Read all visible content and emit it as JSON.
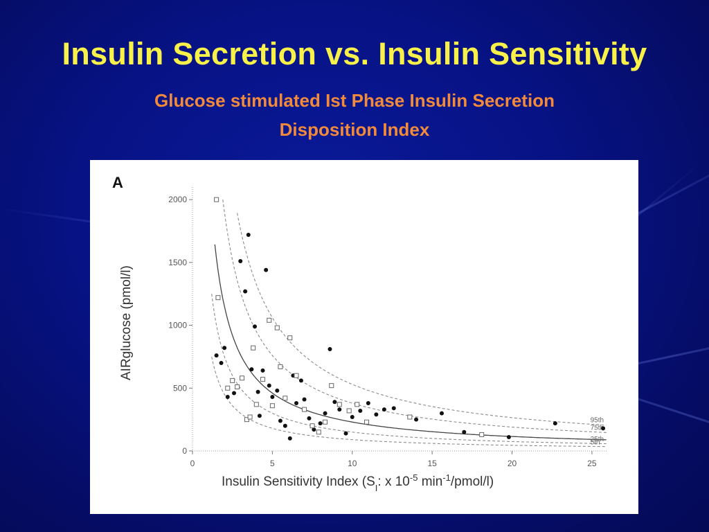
{
  "slide": {
    "title": "Insulin Secretion vs. Insulin Sensitivity",
    "subtitle_line1": "Glucose stimulated  Ist Phase Insulin Secretion",
    "subtitle_line2": "Disposition Index"
  },
  "colors": {
    "background": "#061080",
    "title": "#f8f14a",
    "subtitle": "#f28a3c",
    "panel": "#ffffff",
    "ink": "#333333"
  },
  "chart_data": {
    "type": "scatter",
    "panel_label": "A",
    "xlabel": "Insulin Sensitivity Index (S",
    "xlabel_sub": "I",
    "xlabel_tail": ": x 10",
    "xlabel_sup": "-5",
    "xlabel_end": " min",
    "xlabel_sup2": "-1",
    "xlabel_end2": "/pmol/l)",
    "ylabel": "AIRglucose (pmol/l)",
    "xlim": [
      0,
      26
    ],
    "ylim": [
      0,
      2100
    ],
    "x_ticks": [
      0,
      5,
      10,
      15,
      20,
      25
    ],
    "y_ticks": [
      0,
      500,
      1000,
      1500,
      2000
    ],
    "grid": false,
    "curves": [
      {
        "label": "",
        "k": 2300,
        "style": "solid",
        "xmin": 1.4
      },
      {
        "label": "95th",
        "k": 5300,
        "style": "dashed",
        "xmin": 2.8
      },
      {
        "label": "75th",
        "k": 3800,
        "style": "dashed",
        "xmin": 1.9
      },
      {
        "label": "25th",
        "k": 1500,
        "style": "dashed",
        "xmin": 1.2
      },
      {
        "label": "5th",
        "k": 900,
        "style": "dashed",
        "xmin": 1.2
      }
    ],
    "series": [
      {
        "marker": "filled-circle",
        "points": [
          [
            1.5,
            760
          ],
          [
            1.8,
            700
          ],
          [
            2.0,
            820
          ],
          [
            2.2,
            430
          ],
          [
            2.6,
            460
          ],
          [
            3.0,
            1510
          ],
          [
            3.3,
            1270
          ],
          [
            3.5,
            1720
          ],
          [
            3.7,
            650
          ],
          [
            3.9,
            990
          ],
          [
            4.1,
            470
          ],
          [
            4.2,
            280
          ],
          [
            4.4,
            640
          ],
          [
            4.6,
            1440
          ],
          [
            4.8,
            520
          ],
          [
            5.0,
            430
          ],
          [
            5.3,
            480
          ],
          [
            5.5,
            240
          ],
          [
            5.8,
            200
          ],
          [
            6.1,
            100
          ],
          [
            6.3,
            600
          ],
          [
            6.5,
            380
          ],
          [
            6.8,
            560
          ],
          [
            7.0,
            410
          ],
          [
            7.3,
            260
          ],
          [
            7.6,
            170
          ],
          [
            8.0,
            220
          ],
          [
            8.3,
            300
          ],
          [
            8.6,
            810
          ],
          [
            8.9,
            390
          ],
          [
            9.2,
            330
          ],
          [
            9.6,
            140
          ],
          [
            10.0,
            270
          ],
          [
            10.5,
            320
          ],
          [
            11.0,
            380
          ],
          [
            11.5,
            290
          ],
          [
            12.0,
            330
          ],
          [
            12.6,
            340
          ],
          [
            14.0,
            250
          ],
          [
            15.6,
            300
          ],
          [
            17.0,
            150
          ],
          [
            19.8,
            110
          ],
          [
            22.7,
            220
          ],
          [
            25.7,
            180
          ]
        ]
      },
      {
        "marker": "open-square",
        "points": [
          [
            1.5,
            2000
          ],
          [
            1.6,
            1220
          ],
          [
            2.2,
            500
          ],
          [
            2.5,
            560
          ],
          [
            2.8,
            510
          ],
          [
            3.1,
            580
          ],
          [
            3.4,
            250
          ],
          [
            3.6,
            270
          ],
          [
            3.8,
            820
          ],
          [
            4.0,
            370
          ],
          [
            4.4,
            570
          ],
          [
            4.8,
            1040
          ],
          [
            5.0,
            360
          ],
          [
            5.3,
            980
          ],
          [
            5.5,
            670
          ],
          [
            5.8,
            420
          ],
          [
            6.1,
            900
          ],
          [
            6.5,
            600
          ],
          [
            7.0,
            330
          ],
          [
            7.5,
            200
          ],
          [
            7.9,
            150
          ],
          [
            8.3,
            230
          ],
          [
            8.7,
            520
          ],
          [
            9.2,
            370
          ],
          [
            9.8,
            320
          ],
          [
            10.3,
            370
          ],
          [
            10.9,
            230
          ],
          [
            13.6,
            270
          ],
          [
            18.1,
            130
          ]
        ]
      }
    ]
  }
}
